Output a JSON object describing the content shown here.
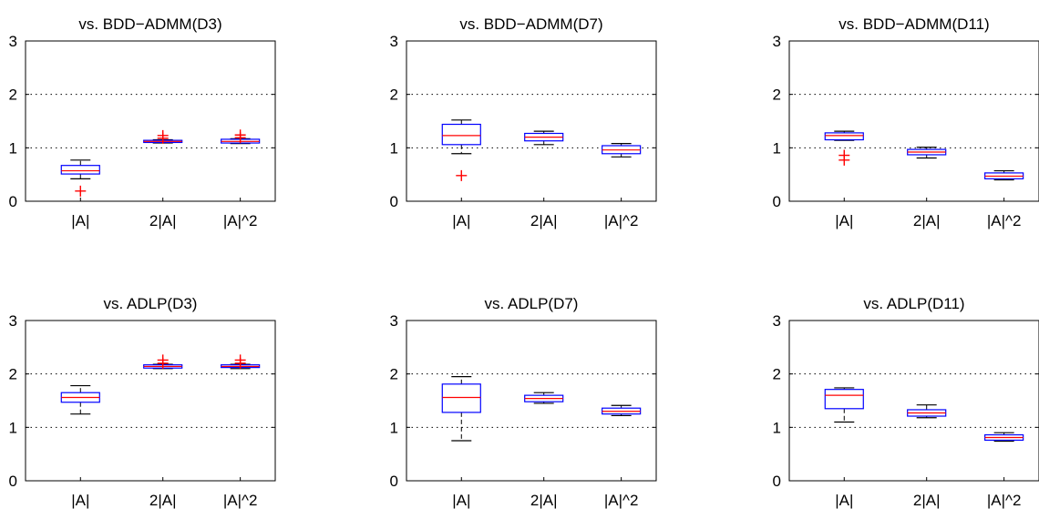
{
  "colors": {
    "axes": "#000000",
    "box": "#0000ff",
    "median": "#ff0000",
    "outlier": "#ff0000",
    "whisker": "#000000",
    "grid": "#000000"
  },
  "chart_data": [
    {
      "type": "boxplot",
      "title": "vs. BDD−ADMM(D3)",
      "categories": [
        "|A|",
        "2|A|",
        "|A|^2"
      ],
      "ylim": [
        0,
        3
      ],
      "yticks": [
        "0",
        "1",
        "2",
        "3"
      ],
      "ygrid": [
        1,
        2
      ],
      "boxes": [
        {
          "whisker_low": 0.42,
          "q1": 0.51,
          "median": 0.57,
          "q3": 0.67,
          "whisker_high": 0.77,
          "outliers": [
            0.19
          ]
        },
        {
          "whisker_low": 1.09,
          "q1": 1.1,
          "median": 1.12,
          "q3": 1.14,
          "whisker_high": 1.15,
          "outliers": [
            1.18,
            1.23
          ]
        },
        {
          "whisker_low": 1.08,
          "q1": 1.09,
          "median": 1.12,
          "q3": 1.16,
          "whisker_high": 1.17,
          "outliers": [
            1.19,
            1.24
          ]
        }
      ]
    },
    {
      "type": "boxplot",
      "title": "vs. BDD−ADMM(D7)",
      "categories": [
        "|A|",
        "2|A|",
        "|A|^2"
      ],
      "ylim": [
        0,
        3
      ],
      "yticks": [
        "0",
        "1",
        "2",
        "3"
      ],
      "ygrid": [
        1,
        2
      ],
      "boxes": [
        {
          "whisker_low": 0.89,
          "q1": 1.06,
          "median": 1.23,
          "q3": 1.44,
          "whisker_high": 1.52,
          "outliers": [
            0.48
          ]
        },
        {
          "whisker_low": 1.06,
          "q1": 1.13,
          "median": 1.2,
          "q3": 1.27,
          "whisker_high": 1.31,
          "outliers": []
        },
        {
          "whisker_low": 0.83,
          "q1": 0.89,
          "median": 0.96,
          "q3": 1.04,
          "whisker_high": 1.08,
          "outliers": []
        }
      ]
    },
    {
      "type": "boxplot",
      "title": "vs. BDD−ADMM(D11)",
      "categories": [
        "|A|",
        "2|A|",
        "|A|^2"
      ],
      "ylim": [
        0,
        3
      ],
      "yticks": [
        "0",
        "1",
        "2",
        "3"
      ],
      "ygrid": [
        1,
        2
      ],
      "boxes": [
        {
          "whisker_low": 1.14,
          "q1": 1.15,
          "median": 1.23,
          "q3": 1.28,
          "whisker_high": 1.31,
          "outliers": [
            0.77,
            0.86
          ]
        },
        {
          "whisker_low": 0.81,
          "q1": 0.87,
          "median": 0.92,
          "q3": 0.97,
          "whisker_high": 1.01,
          "outliers": []
        },
        {
          "whisker_low": 0.4,
          "q1": 0.42,
          "median": 0.47,
          "q3": 0.53,
          "whisker_high": 0.57,
          "outliers": []
        }
      ]
    },
    {
      "type": "boxplot",
      "title": "vs. ADLP(D3)",
      "categories": [
        "|A|",
        "2|A|",
        "|A|^2"
      ],
      "ylim": [
        0,
        3
      ],
      "yticks": [
        "0",
        "1",
        "2",
        "3"
      ],
      "ygrid": [
        1,
        2
      ],
      "boxes": [
        {
          "whisker_low": 1.25,
          "q1": 1.47,
          "median": 1.56,
          "q3": 1.65,
          "whisker_high": 1.78,
          "outliers": []
        },
        {
          "whisker_low": 2.1,
          "q1": 2.11,
          "median": 2.14,
          "q3": 2.17,
          "whisker_high": 2.18,
          "outliers": [
            2.2,
            2.26
          ]
        },
        {
          "whisker_low": 2.1,
          "q1": 2.12,
          "median": 2.14,
          "q3": 2.17,
          "whisker_high": 2.18,
          "outliers": [
            2.2,
            2.26
          ]
        }
      ]
    },
    {
      "type": "boxplot",
      "title": "vs. ADLP(D7)",
      "categories": [
        "|A|",
        "2|A|",
        "|A|^2"
      ],
      "ylim": [
        0,
        3
      ],
      "yticks": [
        "0",
        "1",
        "2",
        "3"
      ],
      "ygrid": [
        1,
        2
      ],
      "boxes": [
        {
          "whisker_low": 0.75,
          "q1": 1.28,
          "median": 1.56,
          "q3": 1.81,
          "whisker_high": 1.95,
          "outliers": []
        },
        {
          "whisker_low": 1.45,
          "q1": 1.48,
          "median": 1.54,
          "q3": 1.6,
          "whisker_high": 1.65,
          "outliers": []
        },
        {
          "whisker_low": 1.22,
          "q1": 1.25,
          "median": 1.3,
          "q3": 1.36,
          "whisker_high": 1.41,
          "outliers": []
        }
      ]
    },
    {
      "type": "boxplot",
      "title": "vs. ADLP(D11)",
      "categories": [
        "|A|",
        "2|A|",
        "|A|^2"
      ],
      "ylim": [
        0,
        3
      ],
      "yticks": [
        "0",
        "1",
        "2",
        "3"
      ],
      "ygrid": [
        1,
        2
      ],
      "boxes": [
        {
          "whisker_low": 1.1,
          "q1": 1.35,
          "median": 1.6,
          "q3": 1.71,
          "whisker_high": 1.74,
          "outliers": []
        },
        {
          "whisker_low": 1.18,
          "q1": 1.21,
          "median": 1.27,
          "q3": 1.33,
          "whisker_high": 1.42,
          "outliers": []
        },
        {
          "whisker_low": 0.74,
          "q1": 0.76,
          "median": 0.81,
          "q3": 0.86,
          "whisker_high": 0.9,
          "outliers": []
        }
      ]
    }
  ]
}
